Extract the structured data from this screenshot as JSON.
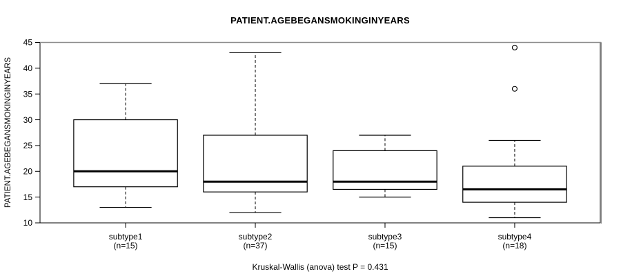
{
  "chart_data": {
    "type": "boxplot",
    "title": "PATIENT.AGEBEGANSMOKINGINYEARS",
    "ylabel": "PATIENT.AGEBEGANSMOKINGINYEARS",
    "footer": "Kruskal-Wallis (anova) test P = 0.431",
    "ylim": [
      10,
      45
    ],
    "yticks": [
      10,
      15,
      20,
      25,
      30,
      35,
      40,
      45
    ],
    "grid": false,
    "legend": "none",
    "groups": [
      {
        "label": "subtype1",
        "count_label": "(n=15)",
        "whisker_low": 13,
        "q1": 17,
        "median": 20,
        "q3": 30,
        "whisker_high": 37,
        "outliers": []
      },
      {
        "label": "subtype2",
        "count_label": "(n=37)",
        "whisker_low": 12,
        "q1": 16,
        "median": 18,
        "q3": 27,
        "whisker_high": 43,
        "outliers": []
      },
      {
        "label": "subtype3",
        "count_label": "(n=15)",
        "whisker_low": 15,
        "q1": 16.5,
        "median": 18,
        "q3": 24,
        "whisker_high": 27,
        "outliers": []
      },
      {
        "label": "subtype4",
        "count_label": "(n=18)",
        "whisker_low": 11,
        "q1": 14,
        "median": 16.5,
        "q3": 21,
        "whisker_high": 26,
        "outliers": [
          36,
          44
        ]
      }
    ],
    "colors": {
      "stroke": "#000000",
      "box_fill": "#ffffff",
      "frame_bevel": "#8c8c8c",
      "background": "#ffffff",
      "text": "#000000"
    }
  }
}
